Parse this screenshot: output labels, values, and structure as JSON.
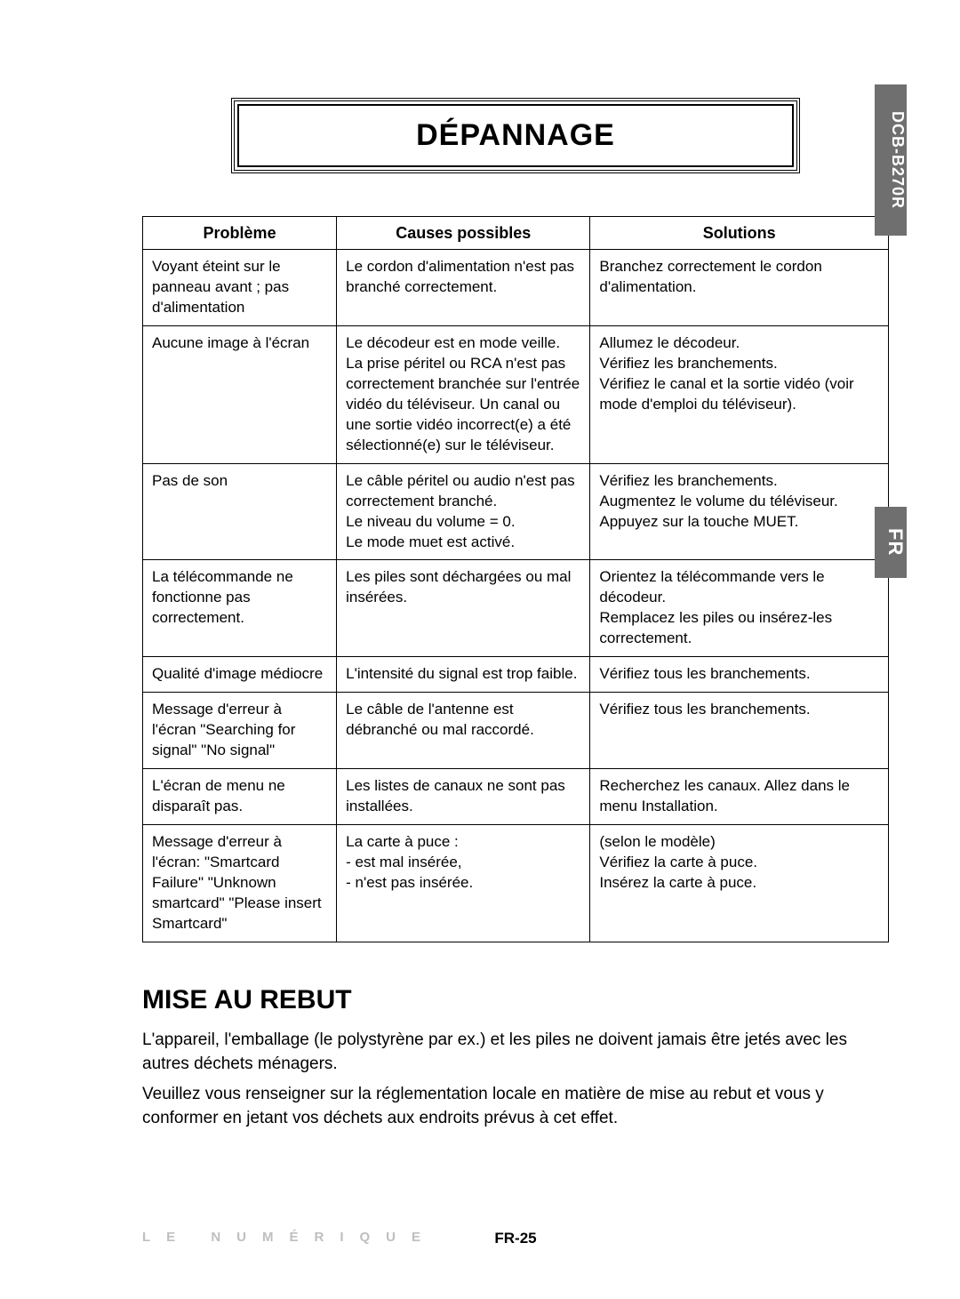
{
  "side_tabs": {
    "model": "DCB-B270R",
    "lang": "FR"
  },
  "title": "DÉPANNAGE",
  "table": {
    "headers": {
      "problem": "Problème",
      "causes": "Causes possibles",
      "solutions": "Solutions"
    },
    "rows": [
      {
        "problem": "Voyant éteint sur le panneau avant ; pas d'alimentation",
        "causes": "Le cordon d'alimentation n'est pas branché correctement.",
        "solutions": "Branchez correctement le cordon d'alimentation."
      },
      {
        "problem": "Aucune image à l'écran",
        "causes": "Le décodeur est en mode veille. La prise péritel ou RCA n'est pas correctement branchée sur l'entrée vidéo du téléviseur. Un canal ou une sortie vidéo incorrect(e) a été sélectionné(e) sur le téléviseur.",
        "solutions": "Allumez le décodeur.\nVérifiez les branchements.\nVérifiez le canal et la sortie vidéo (voir mode d'emploi du téléviseur)."
      },
      {
        "problem": "Pas de son",
        "causes": "Le câble péritel ou audio n'est pas correctement branché.\nLe niveau du volume = 0.\nLe mode muet est activé.",
        "solutions": "Vérifiez les branchements.\nAugmentez le volume du téléviseur.\nAppuyez sur la touche MUET."
      },
      {
        "problem": "La télécommande ne fonctionne pas correctement.",
        "causes": "Les piles sont déchargées ou mal insérées.",
        "solutions": "Orientez la télécommande vers le décodeur.\nRemplacez les piles ou insérez-les correctement."
      },
      {
        "problem": "Qualité d'image médiocre",
        "causes": "L'intensité du signal est trop faible.",
        "solutions": "Vérifiez tous les branchements."
      },
      {
        "problem": "Message d'erreur à l'écran \"Searching for signal\" \"No signal\"",
        "causes": "Le câble de l'antenne est débranché ou mal raccordé.",
        "solutions": "Vérifiez tous les branchements."
      },
      {
        "problem": "L'écran de menu ne disparaît pas.",
        "causes": "Les listes de canaux ne sont pas installées.",
        "solutions": "Recherchez les canaux. Allez dans le menu Installation."
      },
      {
        "problem": "Message d'erreur à l'écran: \"Smartcard Failure\" \"Unknown smartcard\" \"Please insert Smartcard\"",
        "causes": "La carte à puce :\n- est mal insérée,\n- n'est pas insérée.",
        "solutions": "(selon le modèle)\nVérifiez la carte à puce.\nInsérez la carte à puce."
      }
    ]
  },
  "disposal": {
    "heading": "MISE AU REBUT",
    "p1": "L'appareil, l'emballage (le polystyrène par ex.) et les piles ne doivent jamais être jetés avec les autres déchets ménagers.",
    "p2": "Veuillez vous renseigner sur la réglementation locale en matière de mise au rebut et vous y conformer en jetant vos déchets aux endroits prévus à cet effet."
  },
  "footer": {
    "brand": "LE NUMÉRIQUE",
    "page": "FR-25"
  },
  "colors": {
    "tab_bg": "#6f6f6f",
    "brand_grey": "#bfbfbf",
    "text": "#000000",
    "bg": "#ffffff"
  }
}
